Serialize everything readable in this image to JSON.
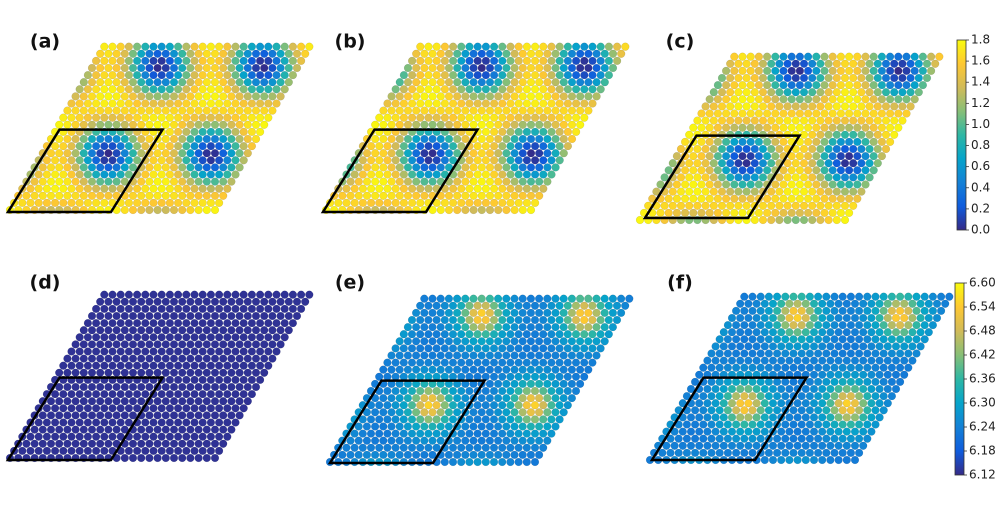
{
  "panels": [
    {
      "label": "(a)"
    },
    {
      "label": "(b)"
    },
    {
      "label": "(c)"
    },
    {
      "label": "(d)"
    },
    {
      "label": "(e)"
    },
    {
      "label": "(f)"
    }
  ],
  "colormap": [
    "#352a87",
    "#0f5cdd",
    "#1481d6",
    "#06a4ca",
    "#2eb7a4",
    "#87bf77",
    "#d1bb59",
    "#fec832",
    "#f9fb0e"
  ],
  "colorbars": [
    {
      "lim": [
        0,
        1.8
      ],
      "ticks": [
        {
          "value": 0,
          "label": "0.0"
        },
        0.2,
        0.4,
        0.6,
        0.8,
        {
          "value": 1,
          "label": "1.0"
        },
        1.2,
        1.4,
        1.6,
        1.8
      ]
    },
    {
      "lim": [
        6.12,
        6.6
      ],
      "ticks": [
        6.12,
        6.18,
        6.24,
        {
          "value": 6.3,
          "label": "6.30"
        },
        6.36,
        6.42,
        6.48,
        6.54,
        {
          "value": 6.6,
          "label": "6.60"
        }
      ]
    }
  ]
}
